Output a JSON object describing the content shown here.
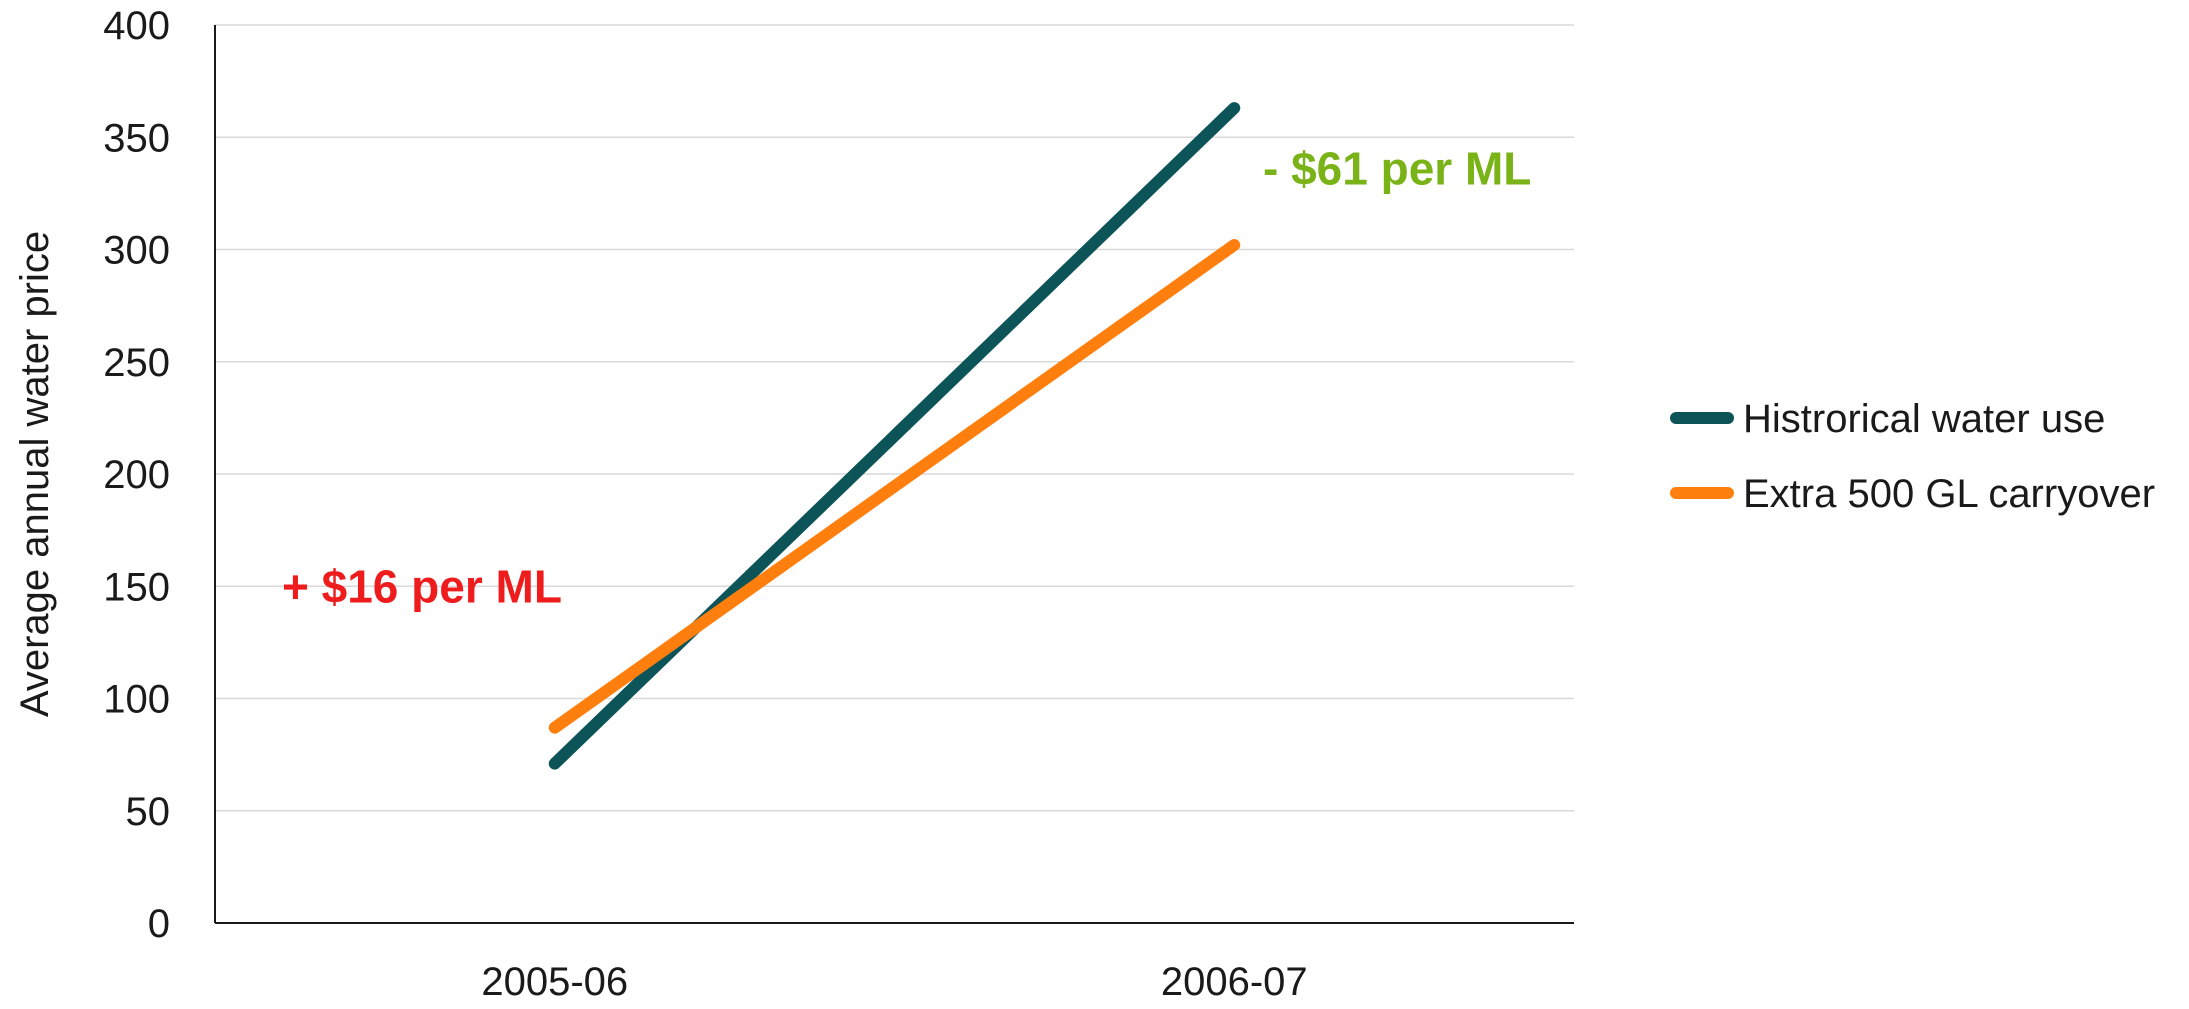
{
  "chart_data": {
    "type": "line",
    "categories": [
      "2005-06",
      "2006-07"
    ],
    "ylabel": "Average annual water price",
    "xlabel": "",
    "ylim": [
      0,
      400
    ],
    "yticks": [
      0,
      50,
      100,
      150,
      200,
      250,
      300,
      350,
      400
    ],
    "grid": true,
    "legend_position": "right",
    "series": [
      {
        "name": "Histrorical water use",
        "values": [
          71,
          363
        ],
        "color": "#0d5459"
      },
      {
        "name": "Extra 500 GL carryover",
        "values": [
          87,
          302
        ],
        "color": "#ff7f0e"
      }
    ],
    "annotations": [
      {
        "text": "+ $16 per ML",
        "category": "2005-06",
        "y": 150,
        "color": "#ee1c1c"
      },
      {
        "text": "- $61 per ML",
        "category": "2006-07",
        "y": 336,
        "color": "#7ab317"
      }
    ]
  }
}
